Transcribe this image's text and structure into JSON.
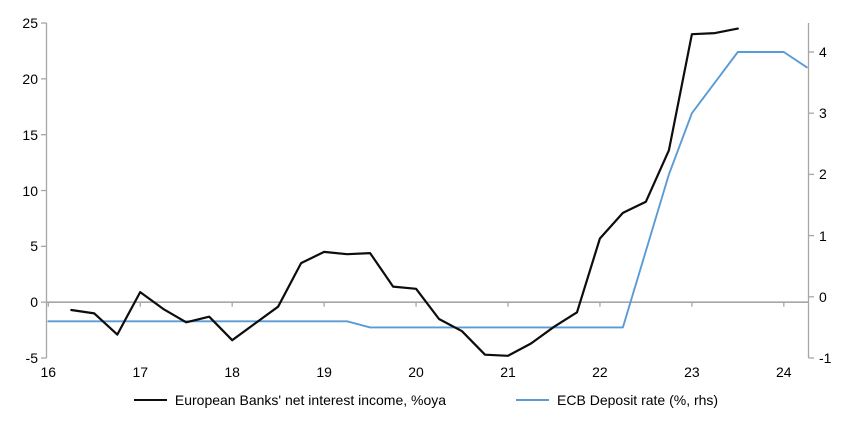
{
  "chart_data": {
    "type": "line",
    "title": "",
    "x_axis": {
      "ticks": [
        16,
        17,
        18,
        19,
        20,
        21,
        22,
        23,
        24
      ],
      "range": [
        16,
        24.28
      ]
    },
    "left_axis": {
      "ticks": [
        25,
        20,
        15,
        10,
        5,
        0,
        -5
      ],
      "range": [
        -5,
        25
      ]
    },
    "right_axis": {
      "ticks": [
        4,
        3,
        2,
        1,
        0,
        -1
      ],
      "range": [
        -1,
        4.47
      ]
    },
    "grid": "zero-line-only",
    "legend_position": "bottom-center",
    "colors": {
      "axis": "#A6A6A6",
      "text": "#000000",
      "background": "#FFFFFF"
    },
    "series": [
      {
        "name": "European Banks' net interest income, %oya",
        "axis": "left",
        "color": "#0D0D0D",
        "x": [
          16.25,
          16.5,
          16.75,
          17.0,
          17.25,
          17.5,
          17.75,
          18.0,
          18.25,
          18.5,
          18.75,
          19.0,
          19.25,
          19.5,
          19.75,
          20.0,
          20.25,
          20.5,
          20.75,
          21.0,
          21.25,
          21.5,
          21.75,
          22.0,
          22.25,
          22.5,
          22.75,
          23.0,
          23.25,
          23.5
        ],
        "values": [
          -0.7,
          -1.0,
          -2.9,
          0.9,
          -0.6,
          -1.8,
          -1.3,
          -3.4,
          -1.9,
          -0.4,
          3.5,
          4.5,
          4.3,
          4.4,
          1.4,
          1.2,
          -1.5,
          -2.6,
          -4.7,
          -4.8,
          -3.7,
          -2.2,
          -0.9,
          5.7,
          8.0,
          9.0,
          13.6,
          24.0,
          24.1,
          24.5
        ]
      },
      {
        "name": "ECB Deposit rate (%, rhs)",
        "axis": "right",
        "color": "#5B9BD5",
        "x": [
          16.0,
          16.25,
          16.5,
          16.75,
          17.0,
          17.25,
          17.5,
          17.75,
          18.0,
          18.25,
          18.5,
          18.75,
          19.0,
          19.25,
          19.5,
          19.75,
          20.0,
          20.25,
          20.5,
          20.75,
          21.0,
          21.25,
          21.5,
          21.75,
          22.0,
          22.25,
          22.5,
          22.75,
          23.0,
          23.25,
          23.5,
          23.75,
          24.0,
          24.25
        ],
        "values": [
          -0.4,
          -0.4,
          -0.4,
          -0.4,
          -0.4,
          -0.4,
          -0.4,
          -0.4,
          -0.4,
          -0.4,
          -0.4,
          -0.4,
          -0.4,
          -0.4,
          -0.5,
          -0.5,
          -0.5,
          -0.5,
          -0.5,
          -0.5,
          -0.5,
          -0.5,
          -0.5,
          -0.5,
          -0.5,
          -0.5,
          0.75,
          2.0,
          3.0,
          3.5,
          4.0,
          4.0,
          4.0,
          3.75
        ]
      }
    ]
  }
}
